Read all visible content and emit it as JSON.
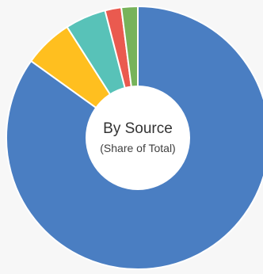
{
  "chart_data": {
    "type": "pie",
    "variant": "donut",
    "title": "By Source",
    "subtitle": "(Share of Total)",
    "start_angle_deg": 0,
    "direction": "clockwise",
    "legend": "none",
    "slices": [
      {
        "value": 84.5,
        "color": "#4a7ec2"
      },
      {
        "value": 6.0,
        "color": "#ffbf1f"
      },
      {
        "value": 5.0,
        "color": "#58c2b8"
      },
      {
        "value": 2.0,
        "color": "#ea5a4f"
      },
      {
        "value": 2.0,
        "color": "#77b35a"
      }
    ]
  }
}
